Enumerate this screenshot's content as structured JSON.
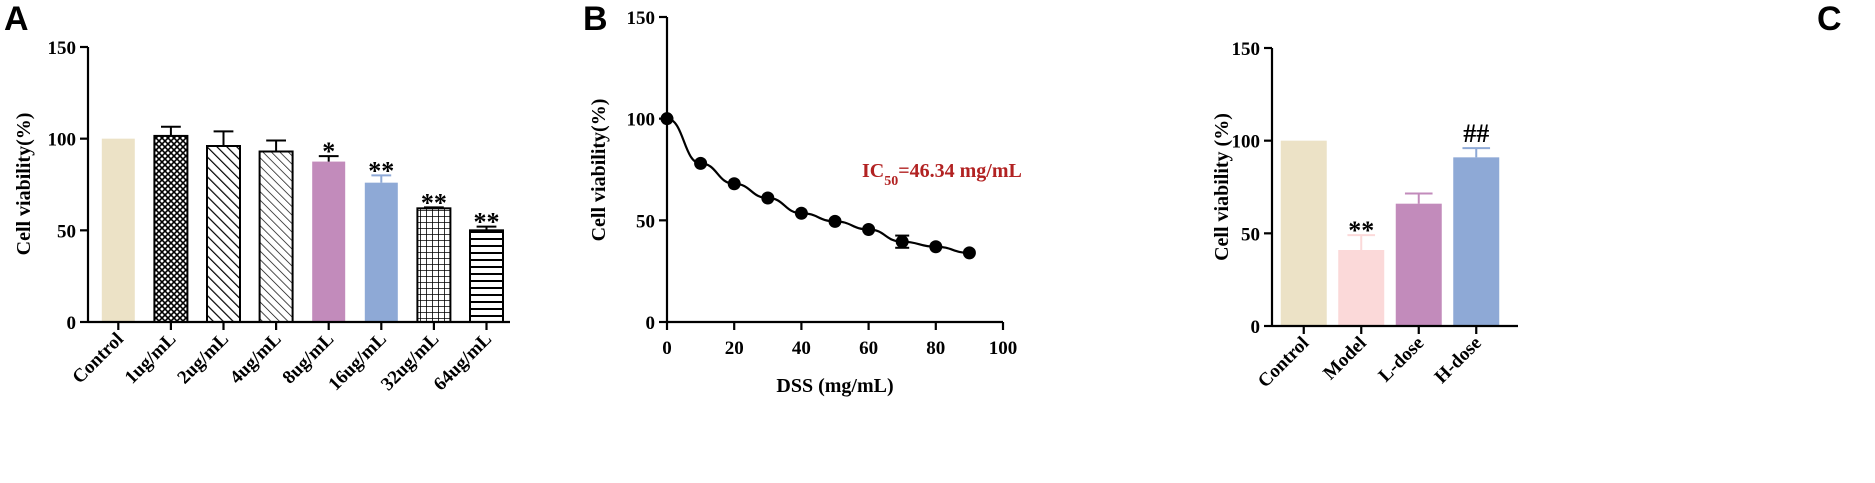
{
  "chart_data": [
    {
      "panel": "A",
      "type": "bar",
      "ylabel": "Cell viability(%)",
      "ylim": [
        0,
        150
      ],
      "yticks": [
        0,
        50,
        100,
        150
      ],
      "categories": [
        "Control",
        "1ug/mL",
        "2ug/mL",
        "4ug/mL",
        "8ug/mL",
        "16ug/mL",
        "32ug/mL",
        "64ug/mL"
      ],
      "values": [
        100,
        101.5,
        96,
        93,
        87.5,
        76,
        62,
        50
      ],
      "errors": [
        0,
        5,
        8,
        6,
        3,
        4,
        0.5,
        2
      ],
      "significance": [
        "",
        "",
        "",
        "",
        "*",
        "**",
        "**",
        "**"
      ],
      "fills": [
        "#ece2c6",
        "crosshatch",
        "diag-dense",
        "diag-sparse",
        "#c28bbb",
        "#8ea9d6",
        "grid",
        "hlines"
      ],
      "error_colors": [
        "#000000",
        "#000000",
        "#000000",
        "#000000",
        "#000000",
        "#8ea9d6",
        "#000000",
        "#000000"
      ]
    },
    {
      "panel": "B",
      "type": "line",
      "xlabel": "DSS (mg/mL)",
      "ylabel": "Cell viability(%)",
      "xlim": [
        0,
        100
      ],
      "ylim": [
        0,
        150
      ],
      "xticks": [
        0,
        20,
        40,
        60,
        80,
        100
      ],
      "yticks": [
        0,
        50,
        100,
        150
      ],
      "x": [
        0,
        10,
        20,
        30,
        40,
        50,
        60,
        70,
        80,
        90
      ],
      "y": [
        100,
        78,
        68,
        61,
        53.5,
        49.5,
        45.5,
        39.5,
        37,
        34
      ],
      "errors": [
        0,
        0,
        0,
        0,
        0,
        0,
        0,
        3,
        0,
        0
      ],
      "annotation": {
        "main": "IC",
        "sub": "50",
        "rest": "=46.34 mg/mL",
        "color": "#b22222"
      }
    },
    {
      "panel": "C",
      "type": "bar",
      "ylabel": "Cell viability (%)",
      "ylim": [
        0,
        150
      ],
      "yticks": [
        0,
        50,
        100,
        150
      ],
      "categories": [
        "Control",
        "Model",
        "L-dose",
        "H-dose"
      ],
      "values": [
        100,
        41,
        66,
        91
      ],
      "errors": [
        0,
        8,
        5.5,
        5
      ],
      "significance": [
        "",
        "**",
        "",
        "##"
      ],
      "colors": [
        "#ece2c6",
        "#fbd9d9",
        "#c28bbb",
        "#8ea9d6"
      ]
    }
  ]
}
